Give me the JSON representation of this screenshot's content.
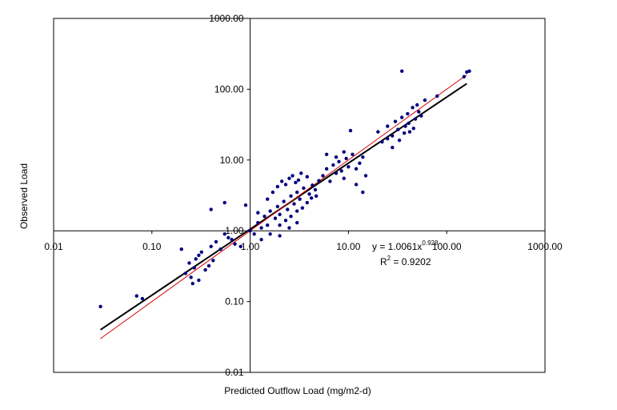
{
  "chart_data": {
    "type": "scatter",
    "title": "",
    "xlabel": "Predicted Outflow Load  (mg/m2-d)",
    "ylabel": "Observed Load",
    "x_scale": "log",
    "y_scale": "log",
    "xlim": [
      0.01,
      1000
    ],
    "ylim": [
      0.01,
      1000
    ],
    "x_ticks": [
      "0.01",
      "0.10",
      "1.00",
      "10.00",
      "100.00",
      "1000.00"
    ],
    "y_ticks": [
      "0.01",
      "0.10",
      "1.00",
      "10.00",
      "100.00",
      "1000.00"
    ],
    "grid": false,
    "legend": "none",
    "annotation": {
      "equation_prefix": "y = 1.0061x",
      "equation_exponent": "0.928",
      "r2_prefix": "R",
      "r2_sup": "2",
      "r2_suffix": " = 0.9202"
    },
    "series": [
      {
        "marker_color": "#00007f",
        "points": [
          [
            0.03,
            0.085
          ],
          [
            0.07,
            0.12
          ],
          [
            0.08,
            0.11
          ],
          [
            0.2,
            0.55
          ],
          [
            0.22,
            0.25
          ],
          [
            0.25,
            0.22
          ],
          [
            0.27,
            0.3
          ],
          [
            0.3,
            0.45
          ],
          [
            0.35,
            0.28
          ],
          [
            0.4,
            0.6
          ],
          [
            0.24,
            0.35
          ],
          [
            0.28,
            0.4
          ],
          [
            0.32,
            0.5
          ],
          [
            0.38,
            0.32
          ],
          [
            0.45,
            0.7
          ],
          [
            0.5,
            0.55
          ],
          [
            0.6,
            0.8
          ],
          [
            0.7,
            0.65
          ],
          [
            0.3,
            0.2
          ],
          [
            0.26,
            0.18
          ],
          [
            0.42,
            0.38
          ],
          [
            0.55,
            0.9
          ],
          [
            0.65,
            0.75
          ],
          [
            0.8,
            0.6
          ],
          [
            0.4,
            2.0
          ],
          [
            0.55,
            2.5
          ],
          [
            0.9,
            2.3
          ],
          [
            1.2,
            1.8
          ],
          [
            1.0,
            1.0
          ],
          [
            1.1,
            0.9
          ],
          [
            1.2,
            1.3
          ],
          [
            1.3,
            1.1
          ],
          [
            1.4,
            1.6
          ],
          [
            1.5,
            1.2
          ],
          [
            1.6,
            1.9
          ],
          [
            1.8,
            1.5
          ],
          [
            1.9,
            2.2
          ],
          [
            2.0,
            1.7
          ],
          [
            2.2,
            2.6
          ],
          [
            2.4,
            2.0
          ],
          [
            2.6,
            3.1
          ],
          [
            2.8,
            2.4
          ],
          [
            3.0,
            3.5
          ],
          [
            3.2,
            2.8
          ],
          [
            1.5,
            2.8
          ],
          [
            1.7,
            3.5
          ],
          [
            1.9,
            4.2
          ],
          [
            2.1,
            5.0
          ],
          [
            2.3,
            4.5
          ],
          [
            2.5,
            5.5
          ],
          [
            2.7,
            6.0
          ],
          [
            2.9,
            4.8
          ],
          [
            3.1,
            5.2
          ],
          [
            3.3,
            6.5
          ],
          [
            3.5,
            4.0
          ],
          [
            3.8,
            5.8
          ],
          [
            4.0,
            3.3
          ],
          [
            4.3,
            4.4
          ],
          [
            4.6,
            3.8
          ],
          [
            5.0,
            5.1
          ],
          [
            2.0,
            1.2
          ],
          [
            2.3,
            1.4
          ],
          [
            2.6,
            1.6
          ],
          [
            3.0,
            1.9
          ],
          [
            3.4,
            2.1
          ],
          [
            3.8,
            2.5
          ],
          [
            4.2,
            2.9
          ],
          [
            4.7,
            3.1
          ],
          [
            1.3,
            0.75
          ],
          [
            1.6,
            0.9
          ],
          [
            2.0,
            0.85
          ],
          [
            2.5,
            1.1
          ],
          [
            3.0,
            1.3
          ],
          [
            5.5,
            6.0
          ],
          [
            6.0,
            7.5
          ],
          [
            6.5,
            5.0
          ],
          [
            7.0,
            8.5
          ],
          [
            7.5,
            6.5
          ],
          [
            8.0,
            9.5
          ],
          [
            8.5,
            7.0
          ],
          [
            9.0,
            5.5
          ],
          [
            9.5,
            10.5
          ],
          [
            10.0,
            8.0
          ],
          [
            11.0,
            12.0
          ],
          [
            12.0,
            7.5
          ],
          [
            13.0,
            9.0
          ],
          [
            14.0,
            11.0
          ],
          [
            15.0,
            6.0
          ],
          [
            6.0,
            12.0
          ],
          [
            7.5,
            11.0
          ],
          [
            9.0,
            13.0
          ],
          [
            10.5,
            26.0
          ],
          [
            12.0,
            4.5
          ],
          [
            14.0,
            3.5
          ],
          [
            20.0,
            25.0
          ],
          [
            22.0,
            18.0
          ],
          [
            25.0,
            30.0
          ],
          [
            28.0,
            22.0
          ],
          [
            30.0,
            35.0
          ],
          [
            32.0,
            27.0
          ],
          [
            35.0,
            40.0
          ],
          [
            38.0,
            30.0
          ],
          [
            40.0,
            45.0
          ],
          [
            42.0,
            25.0
          ],
          [
            45.0,
            55.0
          ],
          [
            48.0,
            38.0
          ],
          [
            50.0,
            60.0
          ],
          [
            55.0,
            42.0
          ],
          [
            25.0,
            20.0
          ],
          [
            28.0,
            15.0
          ],
          [
            33.0,
            19.0
          ],
          [
            37.0,
            24.0
          ],
          [
            41.0,
            33.0
          ],
          [
            46.0,
            28.0
          ],
          [
            52.0,
            48.0
          ],
          [
            35.0,
            180.0
          ],
          [
            60.0,
            70.0
          ],
          [
            80.0,
            80.0
          ],
          [
            150.0,
            150.0
          ],
          [
            160.0,
            175.0
          ],
          [
            170.0,
            180.0
          ]
        ]
      }
    ],
    "trendlines": [
      {
        "name": "",
        "color": "#000000",
        "x_range": [
          0.03,
          160
        ],
        "y_range": [
          0.04,
          120
        ]
      },
      {
        "name": "",
        "color": "#d40000",
        "x_range": [
          0.03,
          160
        ],
        "y_range": [
          0.03,
          160
        ]
      }
    ]
  }
}
